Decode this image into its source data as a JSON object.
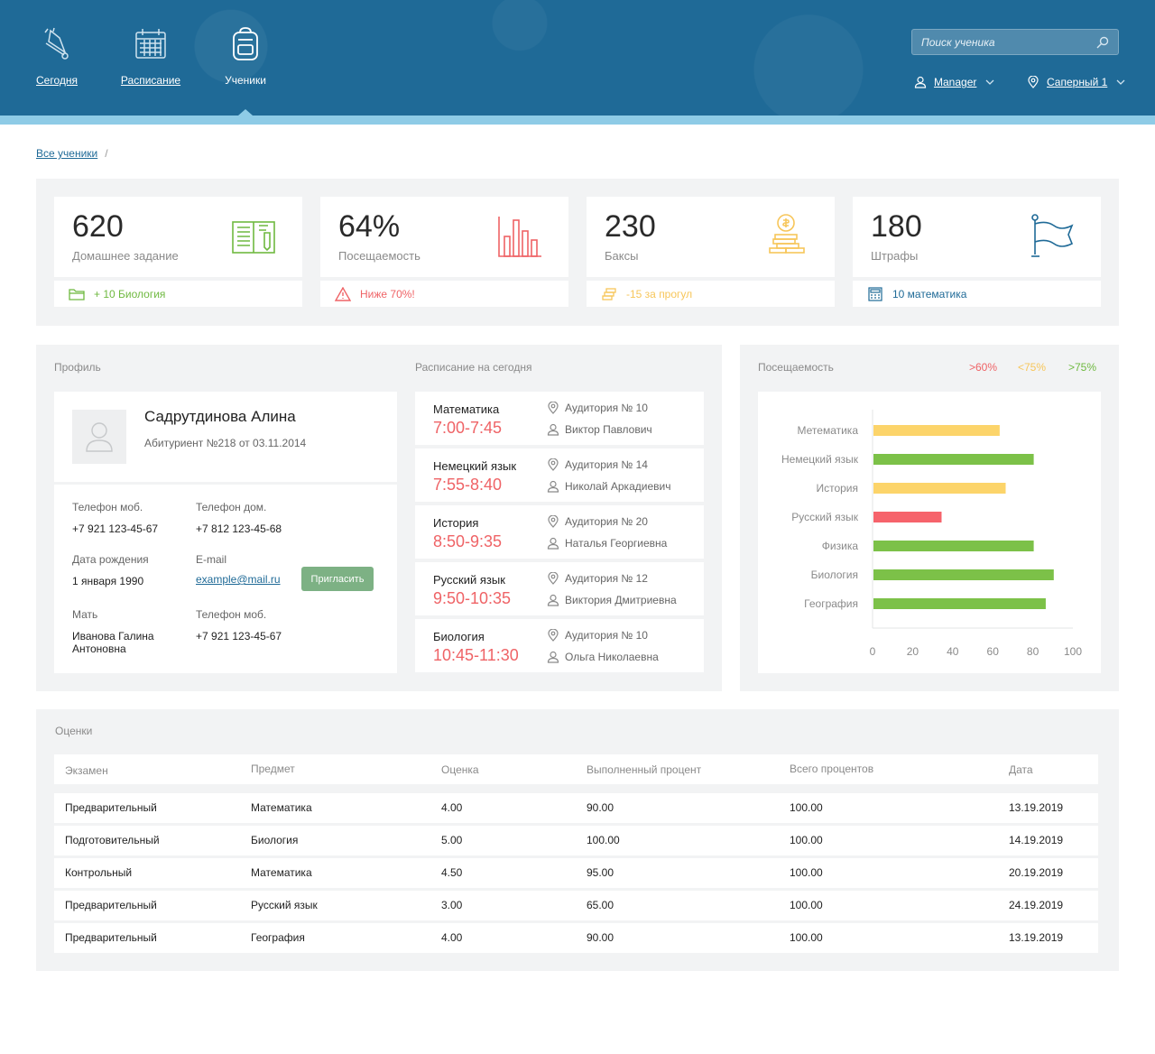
{
  "nav": {
    "today": "Сегодня",
    "schedule": "Расписание",
    "students": "Ученики"
  },
  "search": {
    "placeholder": "Поиск ученика"
  },
  "user_menu": {
    "label": "Manager"
  },
  "location_menu": {
    "label": "Саперный 1"
  },
  "breadcrumb": {
    "all_students": "Все ученики",
    "separator": "/"
  },
  "stats": [
    {
      "value": "620",
      "label": "Домашнее задание",
      "foot": "+ 10 Биология",
      "foot_color": "#6fb940",
      "icon": "book-icon"
    },
    {
      "value": "64%",
      "label": "Посещаемость",
      "foot": "Ниже 70%!",
      "foot_color": "#ef6366",
      "icon": "bar-chart-icon"
    },
    {
      "value": "230",
      "label": "Баксы",
      "foot": "-15 за прогул",
      "foot_color": "#f7c65a",
      "icon": "coins-icon"
    },
    {
      "value": "180",
      "label": "Штрафы",
      "foot": "10 математика",
      "foot_color": "#1f6a97",
      "icon": "flag-icon"
    }
  ],
  "profile": {
    "title": "Профиль",
    "name": "Садрутдинова Алина",
    "subtitle": "Абитуриент №218 от 03.11.2014",
    "mobile_label": "Телефон моб.",
    "mobile": "+7 921 123-45-67",
    "home_label": "Телефон дом.",
    "home": "+7 812 123-45-68",
    "birth_label": "Дата рождения",
    "birth": "1 января 1990",
    "email_label": "E-mail",
    "email": "example@mail.ru",
    "invite": "Пригласить",
    "mother_label": "Мать",
    "mother": "Иванова Галина Антоновна",
    "mother_phone_label": "Телефон моб.",
    "mother_phone": "+7 921 123-45-67"
  },
  "schedule": {
    "title": "Расписание на сегодня",
    "items": [
      {
        "subject": "Математика",
        "time": "7:00-7:45",
        "room": "Аудитория № 10",
        "teacher": "Виктор Павлович"
      },
      {
        "subject": "Немецкий язык",
        "time": "7:55-8:40",
        "room": "Аудитория № 14",
        "teacher": "Николай Аркадиевич"
      },
      {
        "subject": "История",
        "time": "8:50-9:35",
        "room": "Аудитория № 20",
        "teacher": "Наталья Георгиевна"
      },
      {
        "subject": "Русский язык",
        "time": "9:50-10:35",
        "room": "Аудитория № 12",
        "teacher": "Виктория Дмитриевна"
      },
      {
        "subject": "Биология",
        "time": "10:45-11:30",
        "room": "Аудитория № 10",
        "teacher": "Ольга Николаевна"
      }
    ]
  },
  "attendance": {
    "title": "Посещаемость",
    "legend": [
      {
        "label": ">60%",
        "color": "#ef6366"
      },
      {
        "label": "<75%",
        "color": "#f7c65a"
      },
      {
        "label": ">75%",
        "color": "#6fb940"
      }
    ]
  },
  "chart_data": {
    "type": "bar",
    "orientation": "horizontal",
    "categories": [
      "Метематика",
      "Немецкий язык",
      "История",
      "Русский язык",
      "Физика",
      "Биология",
      "География"
    ],
    "values": [
      63,
      80,
      66,
      34,
      80,
      90,
      86
    ],
    "colors": [
      "#fcd46a",
      "#7cc148",
      "#fcd46a",
      "#f6636b",
      "#7cc148",
      "#7cc148",
      "#7cc148"
    ],
    "xlim": [
      0,
      100
    ],
    "xticks": [
      0,
      20,
      40,
      60,
      80,
      100
    ],
    "grid": false
  },
  "grades": {
    "title": "Оценки",
    "headers": [
      "Экзамен",
      "Предмет",
      "Оценка",
      "Выполненный процент",
      "Всего процентов",
      "Дата"
    ],
    "rows": [
      [
        "Предварительный",
        "Математика",
        "4.00",
        "90.00",
        "100.00",
        "13.19.2019"
      ],
      [
        "Подготовительный",
        "Биология",
        "5.00",
        "100.00",
        "100.00",
        "14.19.2019"
      ],
      [
        "Контрольный",
        "Математика",
        "4.50",
        "95.00",
        "100.00",
        "20.19.2019"
      ],
      [
        "Предварительный",
        "Русский язык",
        "3.00",
        "65.00",
        "100.00",
        "24.19.2019"
      ],
      [
        "Предварительный",
        "География",
        "4.00",
        "90.00",
        "100.00",
        "13.19.2019"
      ]
    ]
  }
}
